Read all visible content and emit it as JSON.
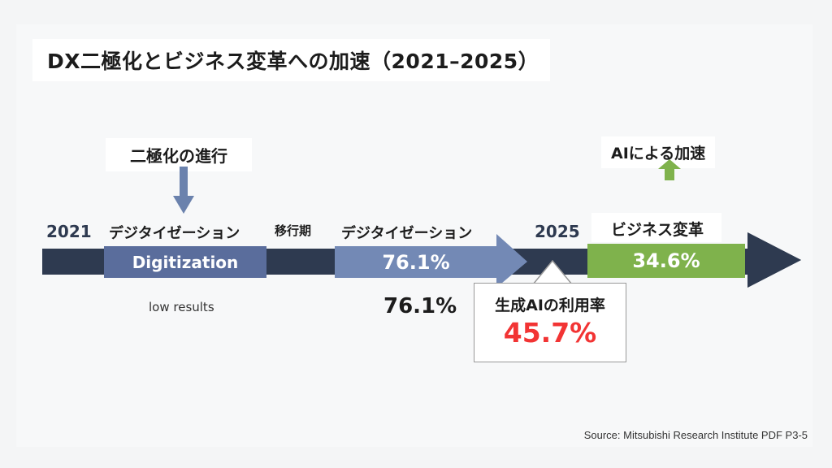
{
  "title": "DX二極化とビジネス変革への加速（2021–2025）",
  "polarization_label": "二極化の進行",
  "ai_accel_label": "AIによる加速",
  "timeline": {
    "start_year": "2021",
    "end_year": "2025",
    "stage1": {
      "label": "デジタイゼーション",
      "box_text": "Digitization",
      "below": "low results"
    },
    "transition": "移行期",
    "stage2": {
      "label": "デジタイゼーション",
      "box_text": "76.1%",
      "below": "76.1%"
    },
    "stage3": {
      "label": "ビジネス変革",
      "box_text": "34.6%"
    }
  },
  "callout": {
    "title": "生成AIの利用率",
    "value": "45.7%"
  },
  "source": "Source: Mitsubishi Research Institute PDF P3-5",
  "colors": {
    "bar": "#2e3a50",
    "stage1": "#5a6d9c",
    "stage2": "#7389b5",
    "stage3": "#7fb24c",
    "highlight": "#f23434",
    "arrow": "#6b82ad"
  }
}
